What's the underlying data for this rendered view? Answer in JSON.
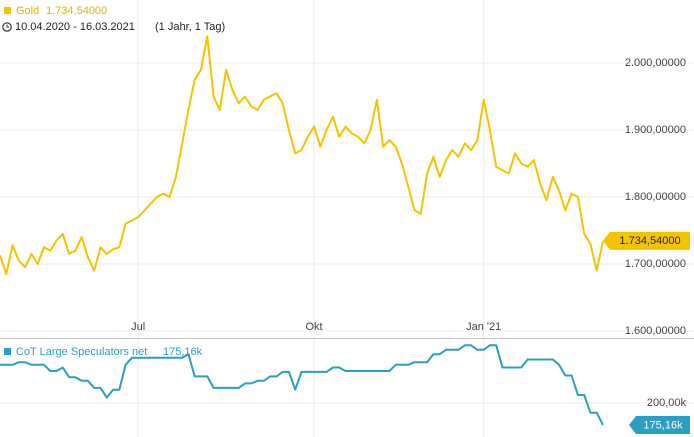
{
  "chart_data": [
    {
      "type": "line",
      "subtitle": "10.04.2020 - 16.03.2021",
      "period": "(1 Jahr, 1 Tag)",
      "categories": [
        null,
        null,
        null,
        null,
        null,
        null,
        null,
        null,
        null,
        null,
        null,
        null,
        null,
        null,
        null,
        null,
        null,
        null,
        null,
        null,
        null,
        null,
        "Jul",
        null,
        null,
        null,
        null,
        null,
        null,
        null,
        null,
        null,
        null,
        null,
        null,
        null,
        null,
        null,
        null,
        null,
        null,
        null,
        null,
        null,
        null,
        null,
        null,
        null,
        null,
        null,
        "Okt",
        null,
        null,
        null,
        null,
        null,
        null,
        null,
        null,
        null,
        null,
        null,
        null,
        null,
        null,
        null,
        null,
        null,
        null,
        null,
        null,
        null,
        null,
        null,
        null,
        null,
        null,
        "Jan '21",
        null,
        null,
        null,
        null,
        null,
        null,
        null,
        null,
        null,
        null,
        null,
        null,
        null,
        null,
        null,
        null,
        null,
        null,
        null
      ],
      "series": [
        {
          "name": "Gold",
          "color": "#f5c400",
          "values": [
            1713,
            1685,
            1728,
            1705,
            1695,
            1715,
            1700,
            1725,
            1720,
            1735,
            1745,
            1715,
            1720,
            1740,
            1710,
            1690,
            1725,
            1715,
            1722,
            1725,
            1760,
            1765,
            1770,
            1780,
            1790,
            1800,
            1805,
            1800,
            1830,
            1880,
            1930,
            1975,
            1990,
            2040,
            1950,
            1930,
            1990,
            1960,
            1940,
            1950,
            1935,
            1930,
            1945,
            1950,
            1955,
            1940,
            1900,
            1865,
            1870,
            1890,
            1905,
            1875,
            1900,
            1920,
            1890,
            1905,
            1895,
            1890,
            1880,
            1900,
            1945,
            1875,
            1885,
            1875,
            1850,
            1815,
            1780,
            1775,
            1835,
            1860,
            1830,
            1855,
            1870,
            1860,
            1880,
            1870,
            1885,
            1945,
            1900,
            1845,
            1840,
            1835,
            1865,
            1850,
            1845,
            1855,
            1820,
            1795,
            1830,
            1810,
            1780,
            1805,
            1800,
            1745,
            1730,
            1690,
            1734.54
          ]
        }
      ],
      "current": {
        "value": 1734.54,
        "label": "1.734,54000"
      },
      "ylim": [
        1591,
        2094
      ],
      "yticks": [
        {
          "value": 1600,
          "label": "1.600,00000"
        },
        {
          "value": 1700,
          "label": "1.700,00000"
        },
        {
          "value": 1800,
          "label": "1.800,00000"
        },
        {
          "value": 1900,
          "label": "1.900,00000"
        },
        {
          "value": 2000,
          "label": "2.000,00000"
        }
      ],
      "grid": true
    },
    {
      "type": "line",
      "series": [
        {
          "name": "CoT Large Speculators net",
          "color": "#2a9fc4",
          "values": [
            243,
            243,
            243,
            246,
            246,
            243,
            243,
            243,
            236,
            236,
            240,
            229,
            229,
            225,
            225,
            217,
            217,
            206,
            215,
            215,
            243,
            251,
            251,
            251,
            251,
            251,
            251,
            251,
            251,
            251,
            255,
            230,
            230,
            230,
            217,
            217,
            217,
            217,
            217,
            222,
            222,
            225,
            225,
            230,
            230,
            235,
            235,
            215,
            235,
            235,
            235,
            235,
            235,
            240,
            240,
            236,
            236,
            236,
            236,
            236,
            236,
            236,
            236,
            243,
            243,
            243,
            246,
            246,
            246,
            255,
            255,
            260,
            260,
            260,
            265,
            265,
            260,
            260,
            265,
            265,
            240,
            240,
            240,
            240,
            249,
            249,
            249,
            249,
            249,
            243,
            231,
            231,
            209,
            209,
            189,
            189,
            175.16
          ]
        }
      ],
      "current": {
        "value": 175.16,
        "label": "175,16k"
      },
      "ylim": [
        161.6,
        271
      ],
      "yticks": [
        {
          "value": 200,
          "label": "200,00k"
        }
      ],
      "grid": true
    }
  ]
}
